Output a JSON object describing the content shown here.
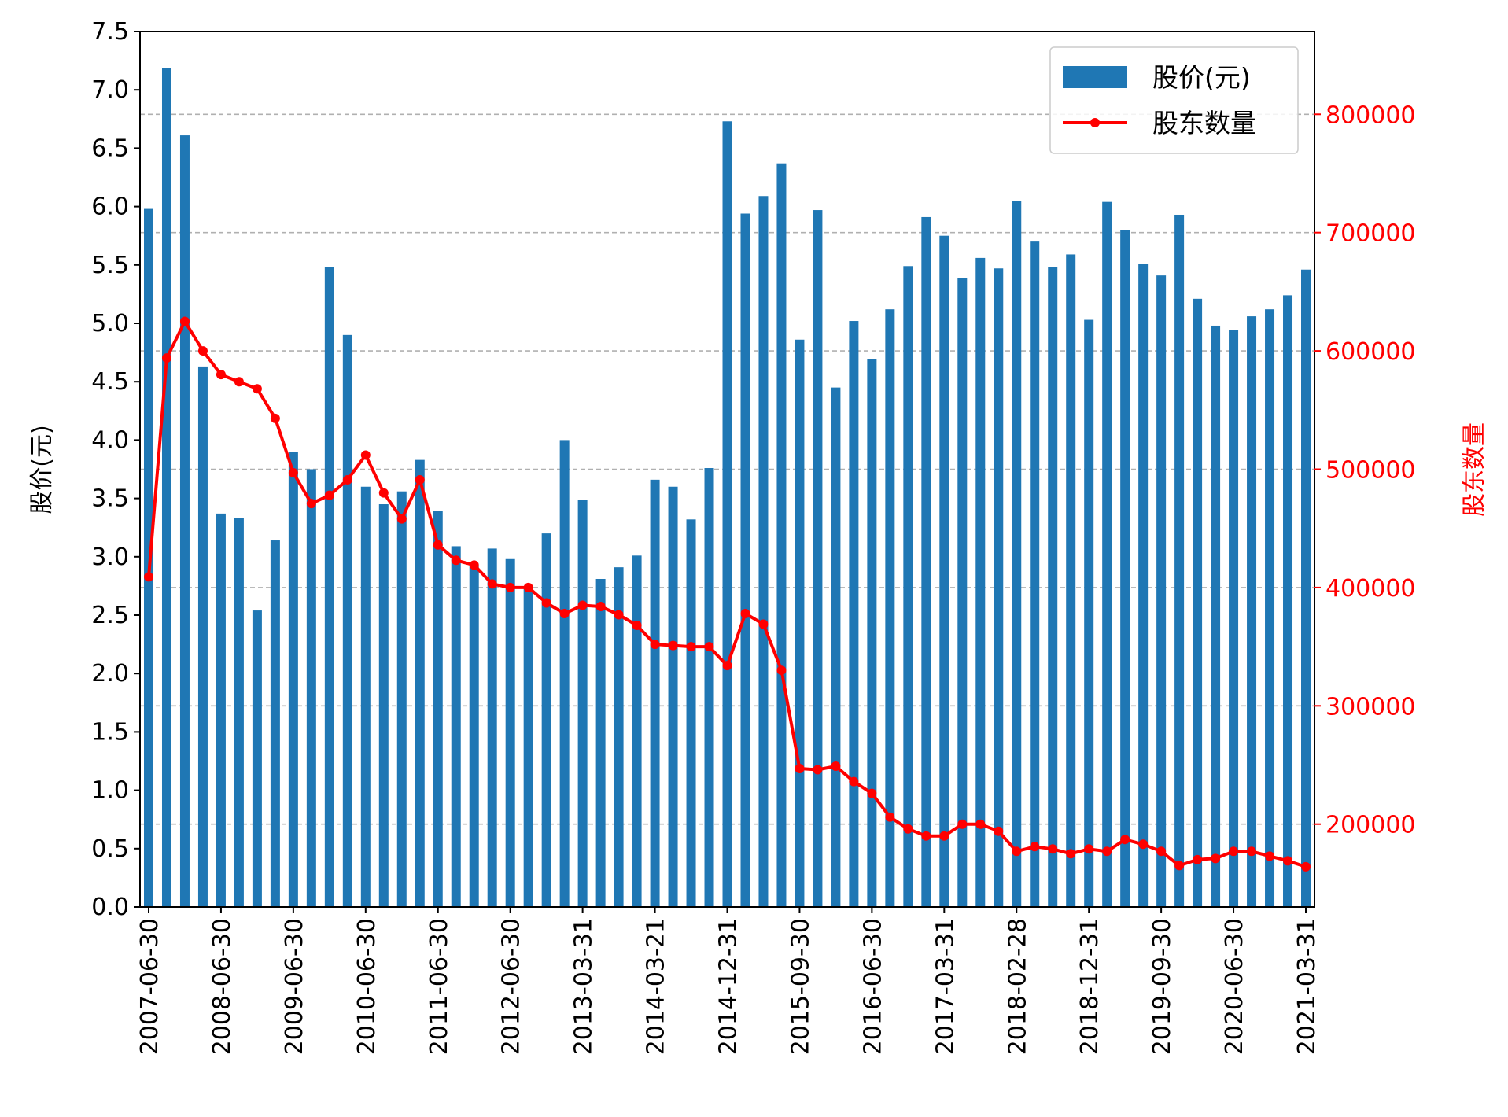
{
  "chart_data": {
    "type": "bar+line",
    "title": "",
    "colors": {
      "bar": "#1f77b4",
      "line": "#ff0000",
      "grid": "#b0b0b0",
      "axis": "#000000"
    },
    "y_left": {
      "label": "股价(元)",
      "range": [
        0,
        7.5
      ],
      "ticks": [
        "0.0",
        "0.5",
        "1.0",
        "1.5",
        "2.0",
        "2.5",
        "3.0",
        "3.5",
        "4.0",
        "4.5",
        "5.0",
        "5.5",
        "6.0",
        "6.5",
        "7.0",
        "7.5"
      ]
    },
    "y_right": {
      "label": "股东数量",
      "range": [
        130000,
        870000
      ],
      "ticks": [
        "200000",
        "300000",
        "400000",
        "500000",
        "600000",
        "700000",
        "800000"
      ],
      "color": "#ff0000"
    },
    "grid": "horizontal dashed on right axis ticks",
    "legend_position": "top-right",
    "x_tick_labels": [
      "2007-06-30",
      "2008-06-30",
      "2009-06-30",
      "2010-06-30",
      "2011-06-30",
      "2012-06-30",
      "2013-03-31",
      "2014-03-21",
      "2014-12-31",
      "2015-09-30",
      "2016-06-30",
      "2017-03-31",
      "2018-02-28",
      "2018-12-31",
      "2019-09-30",
      "2020-06-30",
      "2021-03-31"
    ],
    "series": [
      {
        "name": "股价(元)",
        "kind": "bar",
        "axis": "left",
        "values": [
          5.98,
          7.19,
          6.61,
          4.63,
          3.37,
          3.33,
          2.54,
          3.14,
          3.9,
          3.75,
          5.48,
          4.9,
          3.6,
          3.45,
          3.56,
          3.83,
          3.39,
          3.09,
          2.92,
          3.07,
          2.98,
          2.73,
          3.2,
          4.0,
          3.49,
          2.81,
          2.91,
          3.01,
          3.66,
          3.6,
          3.32,
          3.76,
          6.73,
          5.94,
          6.09,
          6.37,
          4.86,
          5.97,
          4.45,
          5.02,
          4.69,
          5.12,
          5.49,
          5.91,
          5.75,
          5.39,
          5.56,
          5.47,
          6.05,
          5.7,
          5.48,
          5.59,
          5.03,
          6.04,
          5.8,
          5.51,
          5.41,
          5.93,
          5.21,
          4.98,
          4.94,
          5.06,
          5.12,
          5.24,
          5.46
        ]
      },
      {
        "name": "股东数量",
        "kind": "line",
        "axis": "right",
        "values": [
          409000,
          594000,
          625000,
          600000,
          580000,
          574000,
          568000,
          543000,
          497000,
          471000,
          478000,
          491000,
          512000,
          480000,
          458000,
          491000,
          436000,
          423000,
          419000,
          403000,
          400000,
          400000,
          387000,
          378000,
          385000,
          384000,
          377000,
          368000,
          352000,
          351000,
          350000,
          350000,
          334000,
          378000,
          369000,
          330000,
          247000,
          246000,
          249000,
          236000,
          226000,
          206000,
          196000,
          190000,
          190000,
          200000,
          200000,
          194000,
          177000,
          181000,
          179000,
          175000,
          179000,
          177000,
          187000,
          183000,
          177000,
          165000,
          170000,
          171000,
          177000,
          177000,
          173000,
          169000,
          164000
        ]
      }
    ]
  }
}
